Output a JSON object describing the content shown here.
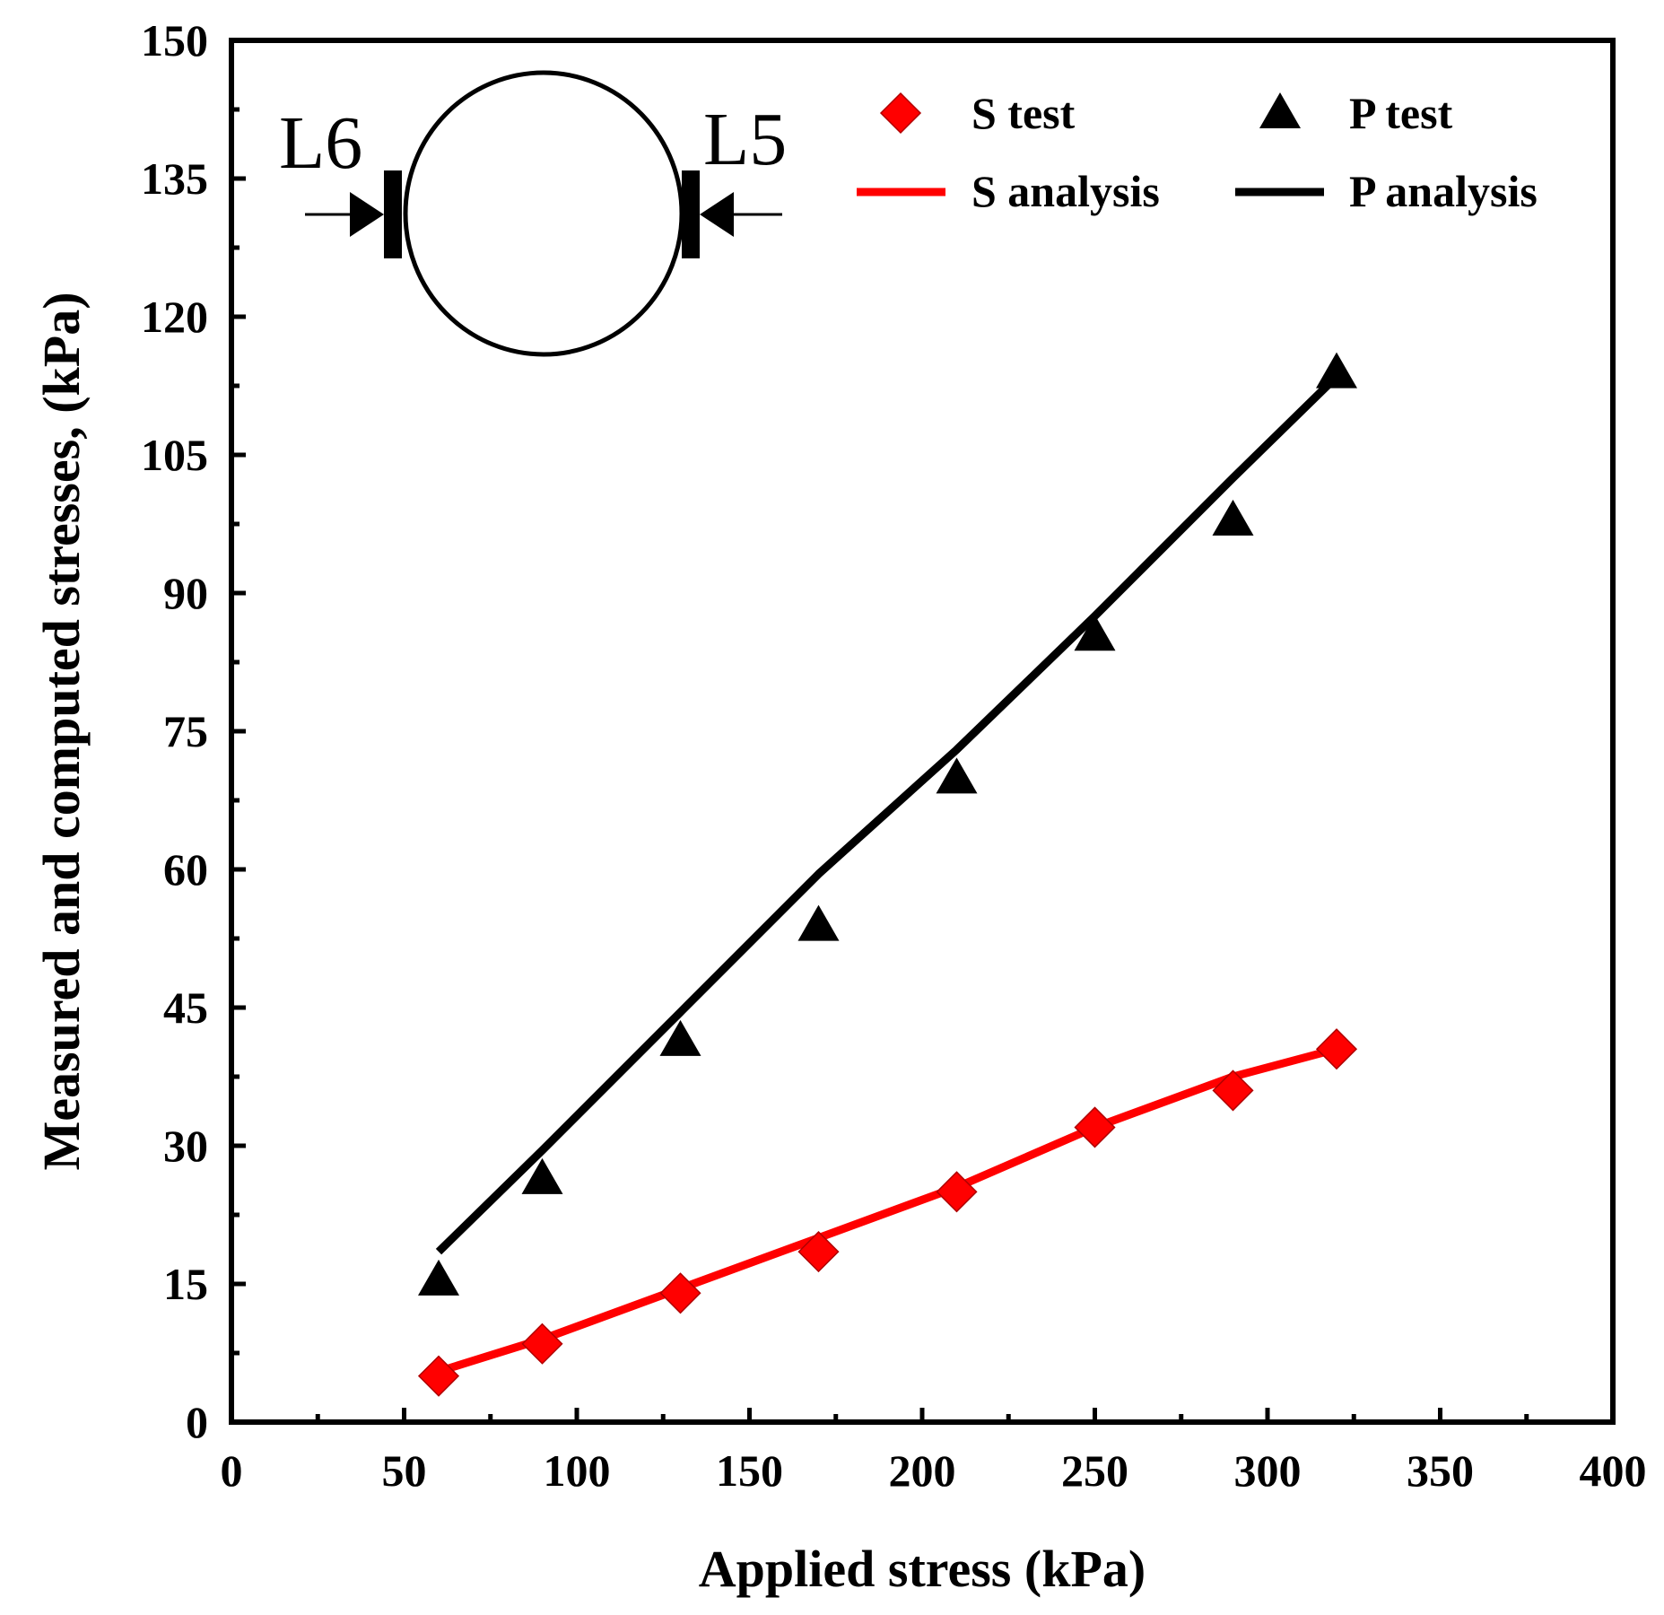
{
  "chart_data": {
    "type": "scatter",
    "title": "",
    "xlabel": "Applied stress (kPa)",
    "ylabel": "Measured and computed stresses, (kPa)",
    "xlim": [
      0,
      400
    ],
    "ylim": [
      0,
      150
    ],
    "x_major_ticks": [
      0,
      50,
      100,
      150,
      200,
      250,
      300,
      350,
      400
    ],
    "x_minor_ticks": [
      25,
      75,
      125,
      175,
      225,
      275,
      325,
      375
    ],
    "y_major_ticks": [
      0,
      15,
      30,
      45,
      60,
      75,
      90,
      105,
      120,
      135,
      150
    ],
    "y_minor_ticks": [
      7.5,
      22.5,
      37.5,
      52.5,
      67.5,
      82.5,
      97.5,
      112.5,
      127.5,
      142.5
    ],
    "x_tick_labels": [
      "0",
      "50",
      "100",
      "150",
      "200",
      "250",
      "300",
      "350",
      "400"
    ],
    "y_tick_labels": [
      "0",
      "15",
      "30",
      "45",
      "60",
      "75",
      "90",
      "105",
      "120",
      "135",
      "150"
    ],
    "series": [
      {
        "name": "S test",
        "kind": "scatter",
        "marker": "diamond",
        "color": "#ff0000",
        "x": [
          60,
          90,
          130,
          170,
          210,
          250,
          290,
          320
        ],
        "y": [
          5,
          8.5,
          14,
          18.5,
          25,
          32,
          36,
          40.5
        ]
      },
      {
        "name": "P test",
        "kind": "scatter",
        "marker": "triangle",
        "color": "#000000",
        "x": [
          60,
          90,
          130,
          170,
          210,
          250,
          290,
          320
        ],
        "y": [
          15.5,
          26.5,
          41.5,
          54,
          70,
          85.5,
          98,
          114
        ]
      },
      {
        "name": "S analysis",
        "kind": "line",
        "color": "#ff0000",
        "x": [
          60,
          90,
          130,
          170,
          210,
          250,
          290,
          320
        ],
        "y": [
          5.5,
          9,
          14.5,
          20,
          25.5,
          32,
          37.5,
          40.5
        ]
      },
      {
        "name": "P analysis",
        "kind": "line",
        "color": "#000000",
        "x": [
          60,
          90,
          130,
          170,
          210,
          250,
          290,
          320
        ],
        "y": [
          18.5,
          29.5,
          44.5,
          59.5,
          73,
          87.5,
          102.5,
          113.5
        ]
      }
    ],
    "legend": {
      "position": "top-right",
      "items": [
        "S test",
        "P test",
        "S analysis",
        "P analysis"
      ]
    },
    "inset": {
      "description": "circular pipe with pressure cells",
      "left_label": "L6",
      "right_label": "L5"
    }
  }
}
